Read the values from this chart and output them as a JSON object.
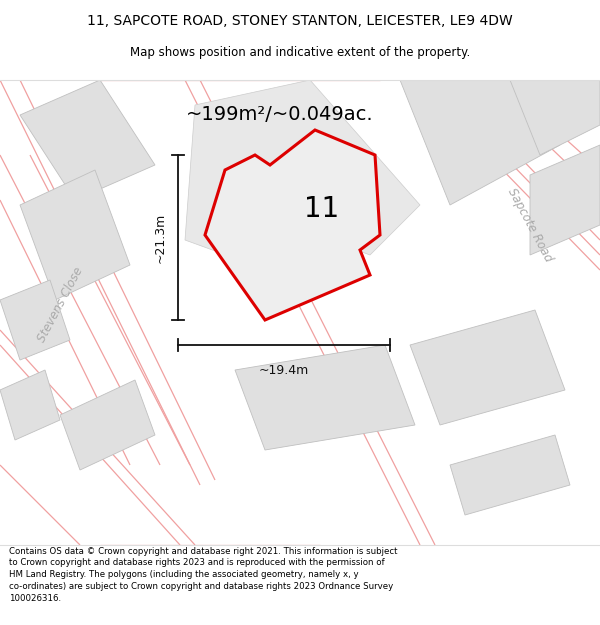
{
  "title_line1": "11, SAPCOTE ROAD, STONEY STANTON, LEICESTER, LE9 4DW",
  "title_line2": "Map shows position and indicative extent of the property.",
  "area_label": "~199m²/~0.049ac.",
  "plot_number": "11",
  "width_label": "~19.4m",
  "height_label": "~21.3m",
  "street_label_left": "Stevens Close",
  "street_label_right": "Sapcote Road",
  "footer_text": "Contains OS data © Crown copyright and database right 2021. This information is subject to Crown copyright and database rights 2023 and is reproduced with the permission of HM Land Registry. The polygons (including the associated geometry, namely x, y co-ordinates) are subject to Crown copyright and database rights 2023 Ordnance Survey 100026316.",
  "map_bg": "#ffffff",
  "building_color": "#e0e0e0",
  "building_edge": "#c0c0c0",
  "road_line_color": "#f0a0a0",
  "plot_fill": "#eeeeee",
  "plot_edge": "#dd0000",
  "title_bg": "#ffffff",
  "footer_bg": "#ffffff",
  "street_color": "#aaaaaa",
  "dim_color": "#111111"
}
